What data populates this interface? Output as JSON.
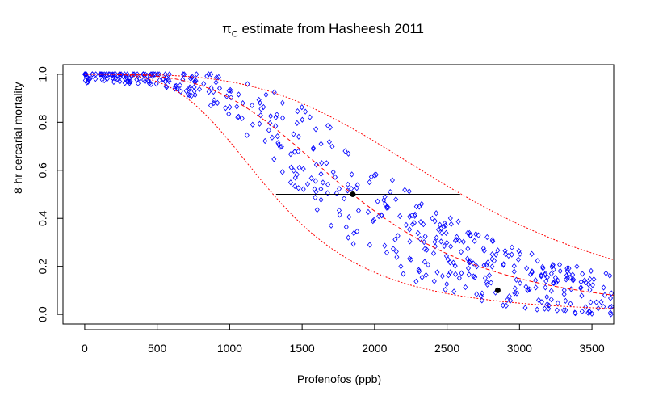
{
  "title": {
    "symbol": "π",
    "subscript": "C",
    "rest": " estimate from Hasheesh 2011"
  },
  "chart_data": {
    "type": "scatter",
    "title": "πC estimate from Hasheesh 2011",
    "xlabel": "Profenofos (ppb)",
    "ylabel": "8-hr cercarial mortality",
    "xlim": [
      -150,
      3650
    ],
    "ylim": [
      -0.04,
      1.04
    ],
    "xticks": [
      0,
      500,
      1000,
      1500,
      2000,
      2500,
      3000,
      3500
    ],
    "yticks": [
      0.0,
      0.2,
      0.4,
      0.6,
      0.8,
      1.0
    ],
    "grid": false,
    "point_color": "#0000ff",
    "curve_color": "#ff0000",
    "observations": {
      "x_min": 0,
      "x_max": 3650,
      "count": 520
    },
    "curves": [
      {
        "name": "",
        "style": "dashed",
        "lc50": 1850,
        "slope": 3.6
      },
      {
        "name": "",
        "style": "dotted",
        "lc50": 1300,
        "slope": 3.6
      },
      {
        "name": "",
        "style": "dotted",
        "lc50": 2600,
        "slope": 3.6
      }
    ],
    "interval_segment": {
      "y": 0.5,
      "x_start": 1320,
      "x_end": 2590
    },
    "highlight_points": [
      {
        "x": 1850,
        "y": 0.5
      },
      {
        "x": 2850,
        "y": 0.1
      }
    ]
  }
}
